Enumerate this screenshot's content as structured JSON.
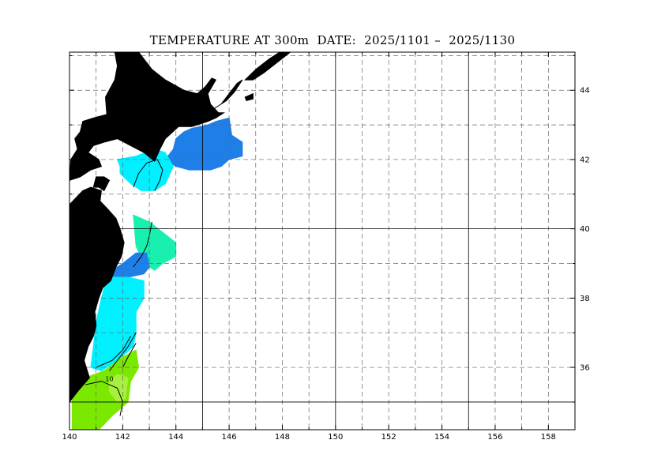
{
  "title": "TEMPERATURE AT 300m  DATE:  2025/1101 –  2025/1130",
  "x_axis": {
    "range": [
      140,
      159
    ],
    "major_ticks": [
      140,
      142,
      144,
      146,
      148,
      150,
      152,
      154,
      156,
      158
    ],
    "tick_labels": [
      "140",
      "142",
      "144",
      "146",
      "148",
      "150",
      "152",
      "154",
      "156",
      "158"
    ],
    "solid_lines": [
      145,
      150,
      155
    ],
    "dashed_lines": [
      141,
      142,
      143,
      144,
      146,
      147,
      148,
      149,
      151,
      152,
      153,
      154,
      156,
      157,
      158
    ]
  },
  "y_axis": {
    "range": [
      34.2,
      45.1
    ],
    "major_ticks": [
      36,
      38,
      40,
      42,
      44
    ],
    "tick_labels": [
      "36",
      "38",
      "40",
      "42",
      "44"
    ],
    "solid_lines": [
      35,
      40
    ],
    "dashed_lines": [
      36,
      37,
      38,
      39,
      41,
      42,
      43,
      44,
      45
    ]
  },
  "contour_labels": [
    {
      "text": "10",
      "lon": 141.5,
      "lat": 35.6
    }
  ],
  "colors": {
    "land": "#000000",
    "blue": "#1f7fe8",
    "cyan": "#00f0ff",
    "teal": "#19f0b0",
    "green": "#7be800",
    "lightgreen": "#a8f040"
  },
  "regions": [
    {
      "name": "east-hokkaido-cold",
      "color": "#1f7fe8",
      "poly": [
        [
          144.0,
          42.6
        ],
        [
          144.3,
          42.8
        ],
        [
          144.6,
          42.9
        ],
        [
          145.2,
          43.0
        ],
        [
          145.5,
          43.1
        ],
        [
          146.0,
          43.2
        ],
        [
          146.1,
          42.7
        ],
        [
          146.5,
          42.5
        ],
        [
          146.5,
          42.1
        ],
        [
          146.0,
          42.0
        ],
        [
          145.7,
          41.8
        ],
        [
          145.3,
          41.7
        ],
        [
          145.0,
          41.7
        ],
        [
          144.5,
          41.7
        ],
        [
          144.0,
          41.8
        ],
        [
          143.6,
          42.0
        ],
        [
          143.9,
          42.3
        ]
      ]
    },
    {
      "name": "south-hokkaido-cyan",
      "color": "#00f0ff",
      "poly": [
        [
          141.8,
          42.0
        ],
        [
          142.5,
          42.1
        ],
        [
          143.2,
          42.3
        ],
        [
          143.6,
          42.2
        ],
        [
          143.9,
          41.8
        ],
        [
          143.6,
          41.3
        ],
        [
          143.2,
          41.1
        ],
        [
          142.7,
          41.1
        ],
        [
          142.3,
          41.3
        ],
        [
          141.9,
          41.6
        ],
        [
          141.9,
          41.8
        ]
      ]
    },
    {
      "name": "sanriku-teal",
      "color": "#19f0b0",
      "poly": [
        [
          142.4,
          40.4
        ],
        [
          143.0,
          40.2
        ],
        [
          143.5,
          39.9
        ],
        [
          144.0,
          39.6
        ],
        [
          144.0,
          39.2
        ],
        [
          143.5,
          39.0
        ],
        [
          143.2,
          38.8
        ],
        [
          142.8,
          39.0
        ],
        [
          142.5,
          39.5
        ]
      ]
    },
    {
      "name": "sanriku-blue",
      "color": "#1f7fe8",
      "poly": [
        [
          142.0,
          39.0
        ],
        [
          142.5,
          39.3
        ],
        [
          142.9,
          39.3
        ],
        [
          143.0,
          38.9
        ],
        [
          142.8,
          38.7
        ],
        [
          142.2,
          38.6
        ],
        [
          141.6,
          38.5
        ],
        [
          141.6,
          38.8
        ]
      ]
    },
    {
      "name": "miyagi-fukushima-cyan",
      "color": "#00f0ff",
      "poly": [
        [
          141.4,
          38.6
        ],
        [
          142.2,
          38.6
        ],
        [
          142.8,
          38.5
        ],
        [
          142.8,
          38.0
        ],
        [
          142.5,
          37.6
        ],
        [
          142.5,
          37.0
        ],
        [
          142.4,
          36.6
        ],
        [
          141.8,
          36.2
        ],
        [
          141.2,
          35.9
        ],
        [
          140.8,
          36.0
        ],
        [
          140.9,
          36.6
        ],
        [
          141.0,
          37.3
        ],
        [
          141.2,
          38.0
        ]
      ]
    },
    {
      "name": "ibaraki-green",
      "color": "#7be800",
      "poly": [
        [
          140.1,
          35.3
        ],
        [
          140.6,
          35.7
        ],
        [
          141.3,
          35.9
        ],
        [
          142.0,
          36.3
        ],
        [
          142.5,
          36.5
        ],
        [
          142.6,
          36.0
        ],
        [
          142.3,
          35.6
        ],
        [
          142.2,
          35.0
        ],
        [
          141.6,
          34.6
        ],
        [
          141.1,
          34.2
        ],
        [
          140.1,
          34.2
        ]
      ]
    },
    {
      "name": "ibaraki-warm-core",
      "color": "#a8f040",
      "poly": [
        [
          141.8,
          35.8
        ],
        [
          142.2,
          35.7
        ],
        [
          142.1,
          35.1
        ],
        [
          141.8,
          35.0
        ],
        [
          141.5,
          35.3
        ],
        [
          141.5,
          35.6
        ]
      ]
    }
  ],
  "contours": [
    [
      [
        142.4,
        41.2
      ],
      [
        142.6,
        41.6
      ],
      [
        142.9,
        41.9
      ],
      [
        143.3,
        42.0
      ],
      [
        143.5,
        41.7
      ],
      [
        143.4,
        41.4
      ],
      [
        143.2,
        41.1
      ]
    ],
    [
      [
        143.1,
        40.2
      ],
      [
        143.0,
        39.8
      ],
      [
        142.9,
        39.5
      ],
      [
        142.7,
        39.2
      ],
      [
        142.4,
        38.9
      ]
    ],
    [
      [
        142.3,
        36.9
      ],
      [
        142.0,
        36.5
      ],
      [
        141.6,
        36.2
      ],
      [
        141.0,
        36.0
      ]
    ],
    [
      [
        142.5,
        37.0
      ],
      [
        142.2,
        36.6
      ],
      [
        141.9,
        36.3
      ],
      [
        141.5,
        35.9
      ]
    ],
    [
      [
        142.5,
        36.7
      ],
      [
        142.2,
        36.3
      ],
      [
        142.0,
        36.0
      ]
    ],
    [
      [
        140.6,
        35.5
      ],
      [
        141.2,
        35.6
      ],
      [
        141.8,
        35.4
      ],
      [
        142.0,
        35.0
      ],
      [
        141.9,
        34.6
      ]
    ]
  ],
  "land": [
    {
      "name": "hokkaido",
      "poly": [
        [
          141.7,
          45.1
        ],
        [
          142.6,
          45.1
        ],
        [
          143.1,
          44.6
        ],
        [
          143.6,
          44.3
        ],
        [
          144.3,
          44.0
        ],
        [
          144.8,
          43.9
        ],
        [
          145.1,
          44.1
        ],
        [
          145.35,
          44.35
        ],
        [
          145.5,
          44.3
        ],
        [
          145.2,
          43.9
        ],
        [
          145.3,
          43.6
        ],
        [
          145.6,
          43.35
        ],
        [
          145.8,
          43.35
        ],
        [
          145.5,
          43.2
        ],
        [
          145.2,
          43.1
        ],
        [
          144.6,
          42.95
        ],
        [
          144.1,
          42.95
        ],
        [
          143.6,
          42.6
        ],
        [
          143.4,
          42.3
        ],
        [
          143.2,
          41.95
        ],
        [
          142.8,
          42.2
        ],
        [
          142.3,
          42.4
        ],
        [
          141.8,
          42.6
        ],
        [
          141.3,
          42.5
        ],
        [
          140.9,
          42.4
        ],
        [
          140.7,
          42.2
        ],
        [
          141.1,
          42.0
        ],
        [
          141.2,
          41.8
        ],
        [
          140.8,
          41.7
        ],
        [
          140.4,
          41.5
        ],
        [
          140.0,
          41.4
        ],
        [
          140.05,
          42.0
        ],
        [
          140.3,
          42.3
        ],
        [
          140.2,
          42.6
        ],
        [
          140.4,
          42.8
        ],
        [
          140.5,
          43.1
        ],
        [
          140.9,
          43.2
        ],
        [
          141.4,
          43.3
        ],
        [
          141.35,
          43.8
        ],
        [
          141.7,
          44.3
        ],
        [
          141.8,
          44.7
        ]
      ]
    },
    {
      "name": "honshu",
      "poly": [
        [
          140.0,
          40.7
        ],
        [
          140.5,
          41.1
        ],
        [
          140.8,
          41.2
        ],
        [
          141.2,
          41.1
        ],
        [
          141.15,
          40.8
        ],
        [
          141.4,
          40.6
        ],
        [
          141.75,
          40.3
        ],
        [
          141.9,
          40.0
        ],
        [
          142.05,
          39.6
        ],
        [
          141.95,
          39.2
        ],
        [
          141.75,
          38.9
        ],
        [
          141.55,
          38.5
        ],
        [
          141.25,
          38.3
        ],
        [
          141.1,
          38.0
        ],
        [
          140.95,
          37.6
        ],
        [
          141.0,
          37.2
        ],
        [
          140.9,
          36.9
        ],
        [
          140.7,
          36.6
        ],
        [
          140.55,
          36.2
        ],
        [
          140.75,
          35.7
        ],
        [
          140.3,
          35.3
        ],
        [
          140.0,
          35.0
        ],
        [
          140.0,
          34.2
        ],
        [
          139.9,
          34.2
        ],
        [
          139.9,
          40.7
        ]
      ]
    },
    {
      "name": "shimokita",
      "poly": [
        [
          140.9,
          41.2
        ],
        [
          141.0,
          41.5
        ],
        [
          141.3,
          41.5
        ],
        [
          141.5,
          41.4
        ],
        [
          141.3,
          41.1
        ],
        [
          141.1,
          41.2
        ]
      ]
    },
    {
      "name": "kunashiri",
      "poly": [
        [
          145.3,
          43.4
        ],
        [
          145.7,
          43.6
        ],
        [
          146.0,
          43.9
        ],
        [
          146.3,
          44.2
        ],
        [
          146.5,
          44.3
        ],
        [
          146.2,
          43.95
        ],
        [
          145.9,
          43.7
        ]
      ]
    },
    {
      "name": "iturup",
      "poly": [
        [
          146.6,
          44.3
        ],
        [
          147.0,
          44.6
        ],
        [
          147.5,
          44.9
        ],
        [
          147.9,
          45.1
        ],
        [
          148.3,
          45.1
        ],
        [
          147.8,
          44.8
        ],
        [
          147.3,
          44.5
        ],
        [
          146.9,
          44.3
        ]
      ]
    },
    {
      "name": "shikotan",
      "poly": [
        [
          146.6,
          43.8
        ],
        [
          146.9,
          43.9
        ],
        [
          146.9,
          43.75
        ],
        [
          146.65,
          43.7
        ]
      ]
    }
  ]
}
